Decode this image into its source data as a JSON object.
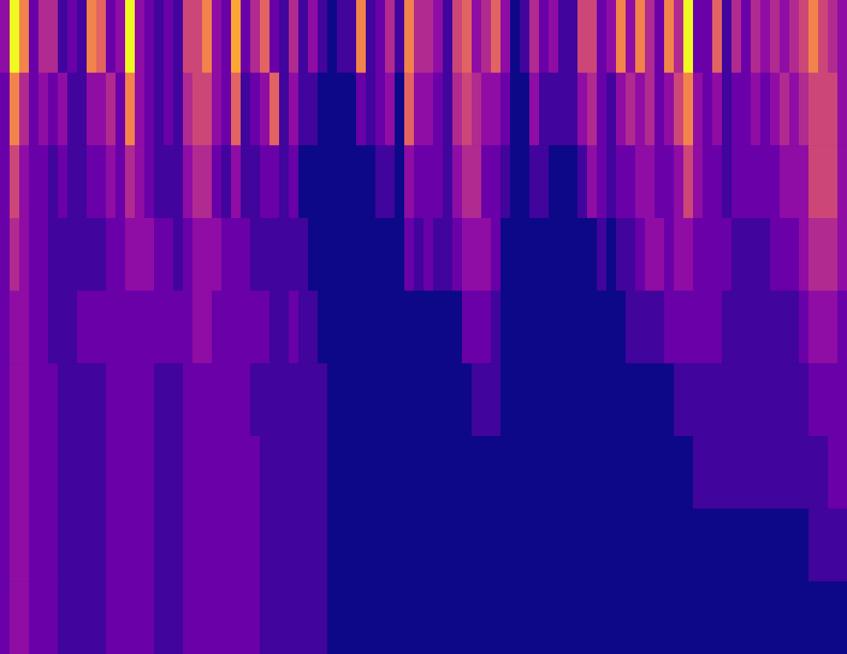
{
  "chart_data": {
    "type": "heatmap",
    "tick_labels": false,
    "zlim": [
      0,
      10
    ],
    "values": [
      [
        3,
        10,
        7,
        2,
        4,
        4,
        1,
        2,
        1,
        7,
        6,
        2,
        3,
        10,
        3,
        2,
        1,
        2,
        1,
        5,
        5,
        7,
        3,
        2,
        8,
        2,
        4,
        6,
        2,
        1,
        4,
        1,
        3,
        1,
        0,
        1,
        1,
        7,
        1,
        2,
        4,
        1,
        7,
        4,
        4,
        3,
        1,
        5,
        6,
        3,
        4,
        6,
        3,
        0,
        1,
        4,
        2,
        3,
        1,
        1,
        5,
        5,
        2,
        3,
        7,
        3,
        7,
        4,
        2,
        7,
        4,
        10,
        2,
        2,
        6,
        1,
        4,
        2,
        4,
        3,
        4,
        3,
        4,
        5,
        7,
        5,
        4,
        3
      ],
      [
        2,
        7,
        4,
        2,
        3,
        2,
        3,
        1,
        1,
        3,
        3,
        4,
        2,
        7,
        3,
        2,
        1,
        2,
        1,
        4,
        5,
        5,
        3,
        2,
        6,
        1,
        2,
        3,
        6,
        1,
        3,
        1,
        1,
        0,
        0,
        0,
        0,
        2,
        1,
        2,
        3,
        0,
        6,
        3,
        3,
        2,
        1,
        4,
        5,
        4,
        3,
        3,
        2,
        0,
        0,
        3,
        1,
        1,
        1,
        1,
        3,
        4,
        2,
        1,
        3,
        4,
        3,
        4,
        2,
        3,
        5,
        7,
        3,
        2,
        3,
        1,
        2,
        2,
        3,
        2,
        3,
        4,
        3,
        4,
        5,
        5,
        5,
        3
      ],
      [
        2,
        5,
        3,
        2,
        2,
        1,
        2,
        1,
        1,
        2,
        2,
        3,
        2,
        4,
        3,
        2,
        1,
        1,
        1,
        3,
        4,
        4,
        2,
        1,
        3,
        1,
        1,
        2,
        2,
        1,
        2,
        0,
        0,
        0,
        0,
        0,
        0,
        0,
        0,
        1,
        1,
        0,
        3,
        2,
        2,
        2,
        1,
        3,
        4,
        4,
        2,
        2,
        1,
        0,
        0,
        1,
        1,
        0,
        0,
        0,
        1,
        3,
        2,
        1,
        2,
        2,
        3,
        3,
        2,
        2,
        3,
        5,
        3,
        2,
        2,
        1,
        2,
        2,
        2,
        2,
        2,
        3,
        3,
        3,
        5,
        5,
        5,
        3
      ],
      [
        2,
        4,
        3,
        2,
        2,
        1,
        1,
        1,
        1,
        1,
        1,
        2,
        2,
        3,
        3,
        3,
        2,
        2,
        1,
        2,
        3,
        3,
        3,
        2,
        2,
        2,
        1,
        1,
        1,
        1,
        1,
        1,
        0,
        0,
        0,
        0,
        0,
        0,
        0,
        0,
        0,
        0,
        2,
        1,
        2,
        1,
        1,
        2,
        3,
        3,
        3,
        2,
        0,
        0,
        0,
        0,
        0,
        0,
        0,
        0,
        0,
        0,
        1,
        0,
        1,
        1,
        2,
        3,
        3,
        2,
        3,
        3,
        2,
        2,
        2,
        2,
        1,
        1,
        1,
        1,
        2,
        2,
        2,
        3,
        4,
        4,
        4,
        3
      ],
      [
        2,
        3,
        3,
        2,
        2,
        1,
        1,
        1,
        2,
        2,
        2,
        2,
        2,
        2,
        2,
        2,
        2,
        2,
        2,
        2,
        3,
        3,
        2,
        2,
        2,
        2,
        2,
        2,
        1,
        1,
        2,
        1,
        1,
        0,
        0,
        0,
        0,
        0,
        0,
        0,
        0,
        0,
        0,
        0,
        0,
        0,
        0,
        0,
        2,
        2,
        2,
        1,
        0,
        0,
        0,
        0,
        0,
        0,
        0,
        0,
        0,
        0,
        0,
        0,
        0,
        1,
        1,
        1,
        1,
        2,
        2,
        2,
        2,
        2,
        2,
        1,
        1,
        1,
        1,
        1,
        1,
        1,
        1,
        2,
        3,
        3,
        3,
        2
      ],
      [
        2,
        3,
        3,
        2,
        2,
        2,
        1,
        1,
        1,
        1,
        1,
        2,
        2,
        2,
        2,
        2,
        1,
        1,
        1,
        2,
        2,
        2,
        2,
        2,
        2,
        2,
        1,
        1,
        1,
        1,
        1,
        1,
        1,
        1,
        0,
        0,
        0,
        0,
        0,
        0,
        0,
        0,
        0,
        0,
        0,
        0,
        0,
        0,
        0,
        1,
        1,
        1,
        0,
        0,
        0,
        0,
        0,
        0,
        0,
        0,
        0,
        0,
        0,
        0,
        0,
        0,
        0,
        0,
        0,
        0,
        1,
        1,
        1,
        1,
        1,
        1,
        1,
        1,
        1,
        1,
        1,
        1,
        1,
        1,
        2,
        2,
        2,
        2
      ],
      [
        2,
        3,
        3,
        2,
        2,
        2,
        1,
        1,
        1,
        1,
        1,
        2,
        2,
        2,
        2,
        2,
        1,
        1,
        1,
        2,
        2,
        2,
        2,
        2,
        2,
        2,
        2,
        1,
        1,
        1,
        1,
        1,
        1,
        1,
        0,
        0,
        0,
        0,
        0,
        0,
        0,
        0,
        0,
        0,
        0,
        0,
        0,
        0,
        0,
        0,
        0,
        0,
        0,
        0,
        0,
        0,
        0,
        0,
        0,
        0,
        0,
        0,
        0,
        0,
        0,
        0,
        0,
        0,
        0,
        0,
        0,
        0,
        1,
        1,
        1,
        1,
        1,
        1,
        1,
        1,
        1,
        1,
        1,
        1,
        1,
        1,
        2,
        2
      ],
      [
        2,
        3,
        3,
        2,
        2,
        2,
        1,
        1,
        1,
        1,
        1,
        2,
        2,
        2,
        2,
        2,
        1,
        1,
        1,
        2,
        2,
        2,
        2,
        2,
        2,
        2,
        2,
        1,
        1,
        1,
        1,
        1,
        1,
        1,
        0,
        0,
        0,
        0,
        0,
        0,
        0,
        0,
        0,
        0,
        0,
        0,
        0,
        0,
        0,
        0,
        0,
        0,
        0,
        0,
        0,
        0,
        0,
        0,
        0,
        0,
        0,
        0,
        0,
        0,
        0,
        0,
        0,
        0,
        0,
        0,
        0,
        0,
        0,
        0,
        0,
        0,
        0,
        0,
        0,
        0,
        0,
        0,
        0,
        0,
        1,
        1,
        1,
        1
      ],
      [
        2,
        3,
        3,
        2,
        2,
        2,
        1,
        1,
        1,
        1,
        1,
        2,
        2,
        2,
        2,
        2,
        1,
        1,
        1,
        2,
        2,
        2,
        2,
        2,
        2,
        2,
        2,
        1,
        1,
        1,
        1,
        1,
        1,
        1,
        0,
        0,
        0,
        0,
        0,
        0,
        0,
        0,
        0,
        0,
        0,
        0,
        0,
        0,
        0,
        0,
        0,
        0,
        0,
        0,
        0,
        0,
        0,
        0,
        0,
        0,
        0,
        0,
        0,
        0,
        0,
        0,
        0,
        0,
        0,
        0,
        0,
        0,
        0,
        0,
        0,
        0,
        0,
        0,
        0,
        0,
        0,
        0,
        0,
        0,
        0,
        0,
        0,
        0
      ]
    ]
  }
}
